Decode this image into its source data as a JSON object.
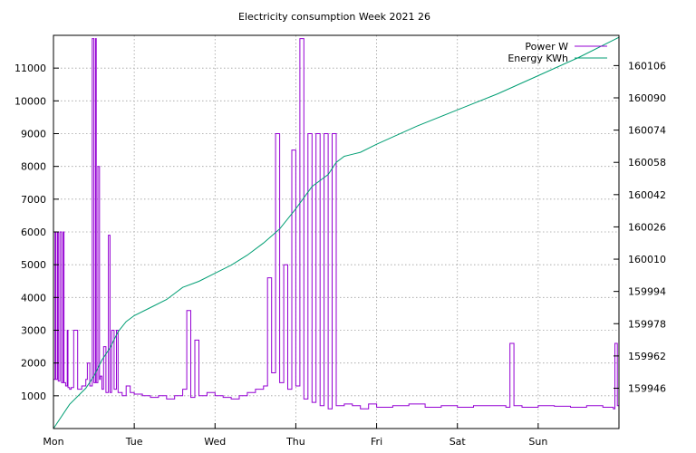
{
  "chart_data": {
    "type": "line",
    "title": "Electricity consumption Week 2021 26",
    "xlabel": "",
    "ylabel": "",
    "y2label": "",
    "grid": true,
    "legend_position": "top-right",
    "x_ticks": [
      "Mon",
      "Tue",
      "Wed",
      "Thu",
      "Fri",
      "Sat",
      "Sun"
    ],
    "x_range": [
      0,
      7
    ],
    "y_range": [
      0,
      12000
    ],
    "y_ticks": [
      1000,
      2000,
      3000,
      4000,
      5000,
      6000,
      7000,
      8000,
      9000,
      10000,
      11000
    ],
    "y2_range": [
      159926,
      160121
    ],
    "y2_ticks": [
      159946,
      159962,
      159978,
      159994,
      160010,
      160026,
      160042,
      160058,
      160074,
      160090,
      160106
    ],
    "colors": {
      "power": "#9400D3",
      "energy": "#009E73"
    },
    "series": [
      {
        "name": "Power W",
        "axis": "left",
        "x": [
          0.0,
          0.02,
          0.03,
          0.05,
          0.06,
          0.08,
          0.1,
          0.12,
          0.13,
          0.15,
          0.17,
          0.18,
          0.2,
          0.22,
          0.25,
          0.3,
          0.35,
          0.4,
          0.42,
          0.45,
          0.48,
          0.5,
          0.52,
          0.53,
          0.55,
          0.57,
          0.58,
          0.6,
          0.62,
          0.65,
          0.68,
          0.7,
          0.72,
          0.75,
          0.78,
          0.8,
          0.85,
          0.9,
          0.95,
          1.0,
          1.1,
          1.2,
          1.3,
          1.4,
          1.5,
          1.6,
          1.65,
          1.7,
          1.75,
          1.8,
          1.9,
          2.0,
          2.1,
          2.2,
          2.3,
          2.4,
          2.5,
          2.6,
          2.65,
          2.7,
          2.75,
          2.8,
          2.85,
          2.9,
          2.95,
          3.0,
          3.05,
          3.1,
          3.15,
          3.2,
          3.25,
          3.3,
          3.35,
          3.4,
          3.45,
          3.5,
          3.6,
          3.7,
          3.8,
          3.9,
          4.0,
          4.2,
          4.4,
          4.6,
          4.8,
          5.0,
          5.2,
          5.4,
          5.6,
          5.65,
          5.7,
          5.8,
          6.0,
          6.2,
          6.4,
          6.6,
          6.8,
          6.93,
          6.95,
          6.98,
          7.0
        ],
        "values": [
          1500,
          6000,
          1500,
          6000,
          1450,
          6000,
          1400,
          6000,
          1400,
          1300,
          3000,
          1250,
          1200,
          1250,
          3000,
          1200,
          1300,
          1500,
          2000,
          1300,
          11900,
          1400,
          11900,
          1400,
          8000,
          1500,
          1600,
          1200,
          2500,
          1100,
          5900,
          1100,
          3000,
          1200,
          3000,
          1100,
          1000,
          1300,
          1100,
          1050,
          1000,
          950,
          1000,
          900,
          1000,
          1200,
          3600,
          950,
          2700,
          1000,
          1100,
          1000,
          950,
          900,
          1000,
          1100,
          1200,
          1300,
          4600,
          1700,
          9000,
          1400,
          5000,
          1200,
          8500,
          1300,
          11900,
          900,
          9000,
          800,
          9000,
          700,
          9000,
          600,
          9000,
          700,
          750,
          700,
          600,
          750,
          650,
          700,
          750,
          650,
          700,
          650,
          700,
          700,
          650,
          2600,
          700,
          650,
          700,
          680,
          650,
          700,
          650,
          600,
          2600,
          700,
          750
        ]
      },
      {
        "name": "Energy KWh",
        "axis": "right",
        "x": [
          0.0,
          0.2,
          0.4,
          0.5,
          0.6,
          0.7,
          0.8,
          0.9,
          1.0,
          1.2,
          1.4,
          1.6,
          1.8,
          2.0,
          2.2,
          2.4,
          2.6,
          2.8,
          3.0,
          3.2,
          3.4,
          3.5,
          3.6,
          3.7,
          3.8,
          4.0,
          4.5,
          5.0,
          5.5,
          6.0,
          6.5,
          7.0
        ],
        "values": [
          159926,
          159938,
          159946,
          159952,
          159960,
          159966,
          159974,
          159979,
          159982,
          159986,
          159990,
          159996,
          159999,
          160003,
          160007,
          160012,
          160018,
          160025,
          160035,
          160046,
          160052,
          160058,
          160061,
          160062,
          160063,
          160067,
          160076,
          160084,
          160092,
          160101,
          160110,
          160120
        ]
      }
    ]
  }
}
